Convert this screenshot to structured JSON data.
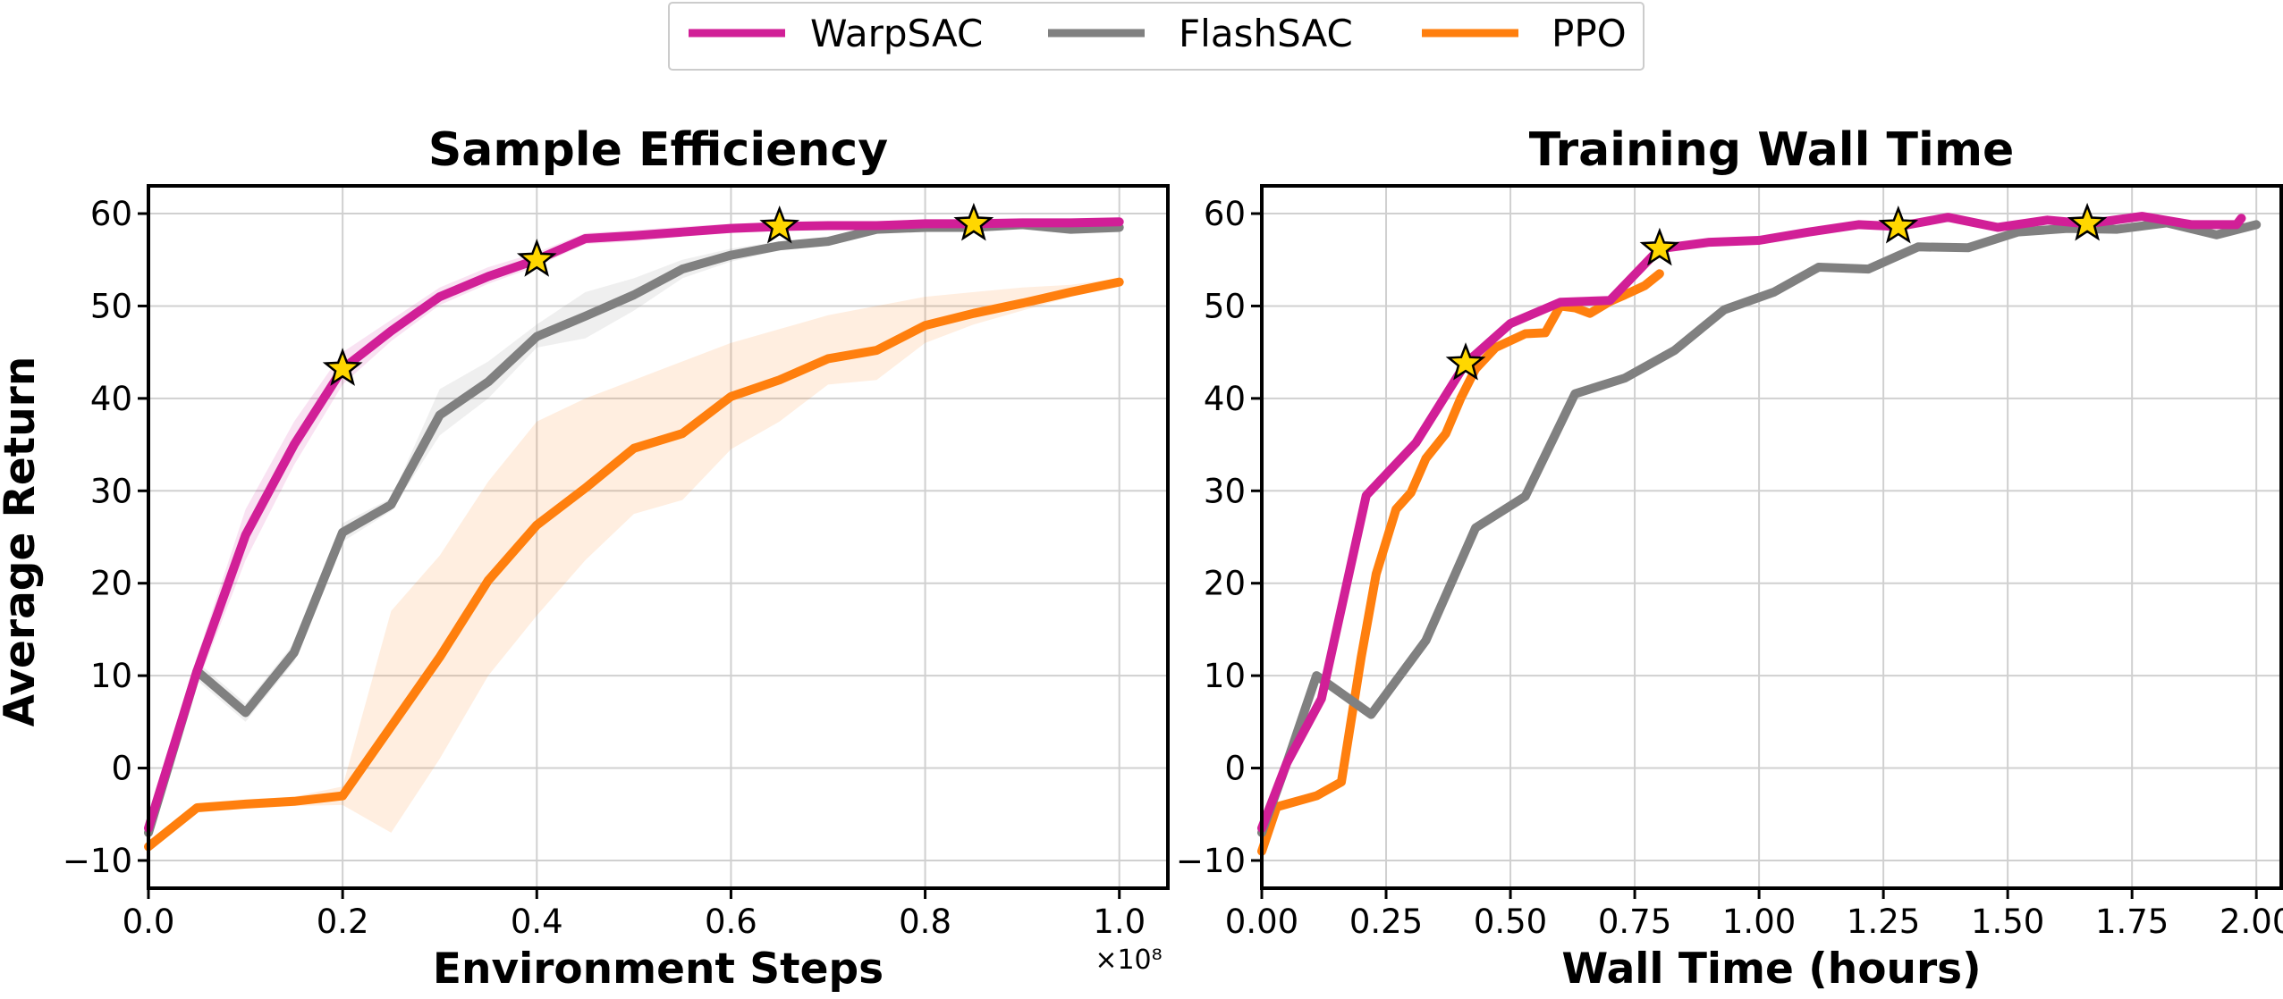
{
  "legend": {
    "entries": [
      {
        "label": "WarpSAC",
        "color": "#d11f97"
      },
      {
        "label": "FlashSAC",
        "color": "#808080"
      },
      {
        "label": "PPO",
        "color": "#ff7f0e"
      }
    ]
  },
  "chart_data": [
    {
      "type": "line",
      "title": "Sample Efficiency",
      "xlabel": "Environment Steps",
      "ylabel": "Average Return",
      "x_multiplier_label": "×10⁸",
      "xlim": [
        0.0,
        1.05
      ],
      "ylim": [
        -13,
        63
      ],
      "grid": true,
      "xticks": [
        0.0,
        0.2,
        0.4,
        0.6,
        0.8,
        1.0
      ],
      "xtick_labels": [
        "0.0",
        "0.2",
        "0.4",
        "0.6",
        "0.8",
        "1.0"
      ],
      "yticks": [
        -10,
        0,
        10,
        20,
        30,
        40,
        50,
        60
      ],
      "ytick_labels": [
        "−10",
        "0",
        "10",
        "20",
        "30",
        "40",
        "50",
        "60"
      ],
      "series": [
        {
          "name": "WarpSAC",
          "color": "#d11f97",
          "x": [
            0.0,
            0.05,
            0.1,
            0.15,
            0.2,
            0.25,
            0.3,
            0.35,
            0.4,
            0.45,
            0.5,
            0.55,
            0.6,
            0.65,
            0.7,
            0.75,
            0.8,
            0.85,
            0.9,
            0.95,
            1.0
          ],
          "y": [
            -6.5,
            10.5,
            25.2,
            35.0,
            43.2,
            47.3,
            51.0,
            53.2,
            55.0,
            57.3,
            57.6,
            58.0,
            58.4,
            58.6,
            58.7,
            58.7,
            58.9,
            58.9,
            59.0,
            59.0,
            59.1
          ],
          "band_lower": [
            -7.5,
            9.0,
            22.5,
            32.8,
            41.5,
            46.2,
            50.1,
            52.4,
            54.3,
            56.7,
            57.0,
            57.5,
            57.9,
            58.1,
            58.2,
            58.3,
            58.5,
            58.5,
            58.6,
            58.6,
            58.7
          ],
          "band_upper": [
            -5.5,
            12.0,
            28.0,
            37.5,
            45.0,
            48.5,
            52.0,
            54.2,
            55.8,
            57.9,
            58.2,
            58.6,
            58.9,
            59.1,
            59.2,
            59.2,
            59.3,
            59.3,
            59.4,
            59.4,
            59.5
          ]
        },
        {
          "name": "FlashSAC",
          "color": "#808080",
          "x": [
            0.0,
            0.05,
            0.1,
            0.15,
            0.2,
            0.25,
            0.3,
            0.35,
            0.4,
            0.45,
            0.5,
            0.55,
            0.6,
            0.65,
            0.7,
            0.75,
            0.8,
            0.85,
            0.9,
            0.95,
            1.0
          ],
          "y": [
            -7.0,
            10.5,
            6.0,
            12.5,
            25.5,
            28.5,
            38.2,
            41.8,
            46.7,
            48.9,
            51.2,
            54.0,
            55.5,
            56.5,
            57.0,
            58.3,
            58.5,
            58.5,
            58.8,
            58.3,
            58.5
          ],
          "band_lower": [
            -8.0,
            9.5,
            5.0,
            11.5,
            24.5,
            27.8,
            36.0,
            40.0,
            45.5,
            46.5,
            49.5,
            53.0,
            54.8,
            56.0,
            56.6,
            57.8,
            58.0,
            58.0,
            58.3,
            57.8,
            58.0
          ],
          "band_upper": [
            -6.0,
            11.5,
            7.0,
            13.5,
            26.5,
            29.2,
            41.0,
            44.0,
            48.0,
            51.5,
            53.0,
            55.0,
            56.2,
            57.0,
            57.4,
            58.8,
            59.0,
            59.0,
            59.3,
            58.8,
            59.0
          ]
        },
        {
          "name": "PPO",
          "color": "#ff7f0e",
          "x": [
            0.0,
            0.05,
            0.1,
            0.15,
            0.2,
            0.25,
            0.3,
            0.35,
            0.4,
            0.45,
            0.5,
            0.55,
            0.6,
            0.65,
            0.7,
            0.75,
            0.8,
            0.85,
            0.9,
            0.95,
            1.0
          ],
          "y": [
            -8.5,
            -4.3,
            -3.9,
            -3.6,
            -3.0,
            4.5,
            12.0,
            20.3,
            26.3,
            30.3,
            34.6,
            36.2,
            40.2,
            42.0,
            44.3,
            45.2,
            47.9,
            49.2,
            50.3,
            51.5,
            52.6
          ],
          "band_lower": [
            -9.0,
            -4.8,
            -4.4,
            -4.1,
            -4.0,
            -7.0,
            1.0,
            10.0,
            16.5,
            22.5,
            27.5,
            29.0,
            34.5,
            37.5,
            41.5,
            42.0,
            46.0,
            48.0,
            49.5,
            51.0,
            52.2
          ],
          "band_upper": [
            -8.0,
            -3.8,
            -3.4,
            -3.1,
            -2.0,
            17.0,
            23.0,
            31.0,
            37.5,
            40.0,
            42.0,
            44.0,
            46.0,
            47.5,
            49.0,
            50.0,
            51.0,
            51.5,
            52.0,
            52.3,
            53.0
          ]
        }
      ],
      "markers": [
        {
          "series": "WarpSAC",
          "x": 0.2,
          "y": 43.2,
          "shape": "star",
          "color": "#ffd700"
        },
        {
          "series": "WarpSAC",
          "x": 0.4,
          "y": 55.0,
          "shape": "star",
          "color": "#ffd700"
        },
        {
          "series": "WarpSAC",
          "x": 0.65,
          "y": 58.6,
          "shape": "star",
          "color": "#ffd700"
        },
        {
          "series": "WarpSAC",
          "x": 0.85,
          "y": 58.9,
          "shape": "star",
          "color": "#ffd700"
        }
      ]
    },
    {
      "type": "line",
      "title": "Training Wall Time",
      "xlabel": "Wall Time (hours)",
      "ylabel": "",
      "xlim": [
        0.0,
        2.05
      ],
      "ylim": [
        -13,
        63
      ],
      "grid": true,
      "xticks": [
        0.0,
        0.25,
        0.5,
        0.75,
        1.0,
        1.25,
        1.5,
        1.75,
        2.0
      ],
      "xtick_labels": [
        "0.00",
        "0.25",
        "0.50",
        "0.75",
        "1.00",
        "1.25",
        "1.50",
        "1.75",
        "2.00"
      ],
      "yticks": [
        -10,
        0,
        10,
        20,
        30,
        40,
        50,
        60
      ],
      "ytick_labels": [
        "−10",
        "0",
        "10",
        "20",
        "30",
        "40",
        "50",
        "60"
      ],
      "series": [
        {
          "name": "WarpSAC",
          "color": "#d11f97",
          "x": [
            0.0,
            0.05,
            0.12,
            0.21,
            0.31,
            0.41,
            0.5,
            0.6,
            0.7,
            0.8,
            0.9,
            1.0,
            1.1,
            1.2,
            1.28,
            1.38,
            1.48,
            1.58,
            1.66,
            1.77,
            1.87,
            1.96,
            1.97
          ],
          "y": [
            -6.5,
            0.5,
            7.5,
            29.5,
            35.2,
            43.8,
            48.1,
            50.4,
            50.6,
            56.2,
            56.9,
            57.1,
            58.0,
            58.8,
            58.6,
            59.6,
            58.5,
            59.3,
            58.9,
            59.7,
            58.8,
            58.8,
            59.5
          ]
        },
        {
          "name": "FlashSAC",
          "color": "#808080",
          "x": [
            0.0,
            0.05,
            0.11,
            0.22,
            0.33,
            0.43,
            0.53,
            0.63,
            0.73,
            0.83,
            0.93,
            1.03,
            1.12,
            1.22,
            1.32,
            1.42,
            1.52,
            1.62,
            1.72,
            1.82,
            1.92,
            2.0
          ],
          "y": [
            -7.0,
            0.5,
            10.0,
            5.8,
            13.8,
            26.0,
            29.4,
            40.5,
            42.2,
            45.2,
            49.6,
            51.5,
            54.2,
            54.0,
            56.4,
            56.3,
            58.0,
            58.4,
            58.3,
            59.0,
            57.7,
            58.8
          ]
        },
        {
          "name": "PPO",
          "color": "#ff7f0e",
          "x": [
            0.0,
            0.03,
            0.11,
            0.16,
            0.2,
            0.23,
            0.27,
            0.3,
            0.33,
            0.37,
            0.4,
            0.43,
            0.47,
            0.53,
            0.57,
            0.6,
            0.63,
            0.66,
            0.7,
            0.73,
            0.77,
            0.8
          ],
          "y": [
            -9.0,
            -4.2,
            -3.0,
            -1.5,
            12.0,
            21.0,
            28.0,
            29.8,
            33.5,
            36.2,
            40.0,
            43.2,
            45.5,
            47.0,
            47.1,
            50.0,
            49.8,
            49.2,
            50.5,
            51.2,
            52.2,
            53.5
          ]
        }
      ],
      "markers": [
        {
          "series": "WarpSAC",
          "x": 0.41,
          "y": 43.8,
          "shape": "star",
          "color": "#ffd700"
        },
        {
          "series": "WarpSAC",
          "x": 0.8,
          "y": 56.2,
          "shape": "star",
          "color": "#ffd700"
        },
        {
          "series": "WarpSAC",
          "x": 1.28,
          "y": 58.6,
          "shape": "star",
          "color": "#ffd700"
        },
        {
          "series": "WarpSAC",
          "x": 1.66,
          "y": 58.9,
          "shape": "star",
          "color": "#ffd700"
        }
      ]
    }
  ]
}
